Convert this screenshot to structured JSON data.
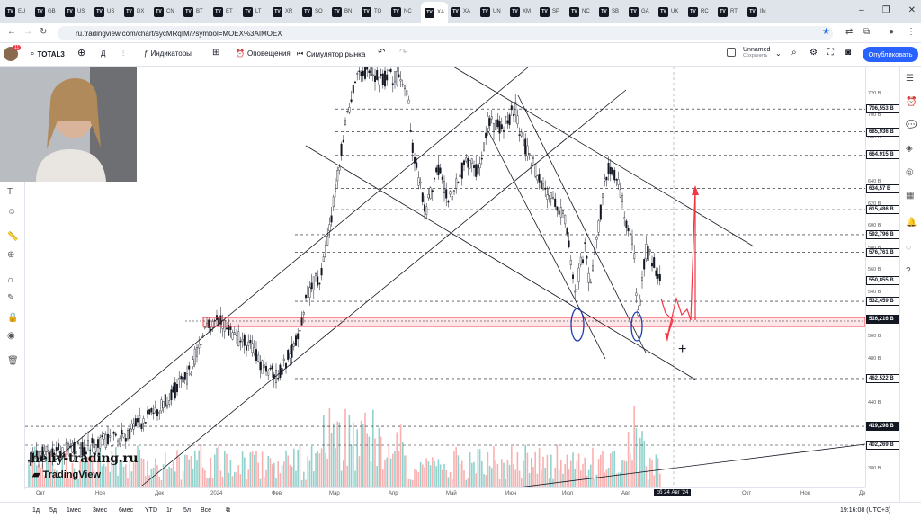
{
  "browser": {
    "tabs": [
      "EU",
      "GB",
      "US",
      "US",
      "DX",
      "CN",
      "BT",
      "ET",
      "LT",
      "XR",
      "SO",
      "BN",
      "TO",
      "NC",
      "XA",
      "XA",
      "UN",
      "XM",
      "SP",
      "NC",
      "SB",
      "GA",
      "UK",
      "RC",
      "RT",
      "IM"
    ],
    "active_tab": "",
    "url": "ru.tradingview.com/chart/sycMRqIM/?symbol=MOEX%3AIMOEX"
  },
  "toolbar": {
    "symbol": "TOTAL3",
    "interval": "Д",
    "indicators": "Индикаторы",
    "alerts": "Оповещения",
    "replay": "Симулятор рынка",
    "layout_name": "Unnamed",
    "layout_status": "Сохранить",
    "publish": "Опубликовать",
    "notif_count": "11"
  },
  "watermark": {
    "site": "heliy-trading.ru",
    "brand": "TradingView"
  },
  "price_axis": {
    "ticks": [
      "720 В",
      "700 В",
      "680 В",
      "640 В",
      "620 В",
      "600 В",
      "580 В",
      "560 В",
      "540 В",
      "500 В",
      "480 В",
      "440 В",
      "380 В"
    ],
    "levels": [
      {
        "label": "706,553 В",
        "value": 706.553,
        "style": "box"
      },
      {
        "label": "685,936 В",
        "value": 685.936,
        "style": "box"
      },
      {
        "label": "664,915 В",
        "value": 664.915,
        "style": "box"
      },
      {
        "label": "634,57 В",
        "value": 634.57,
        "style": "box"
      },
      {
        "label": "615,486 В",
        "value": 615.486,
        "style": "box"
      },
      {
        "label": "592,796 В",
        "value": 592.796,
        "style": "box"
      },
      {
        "label": "576,761 В",
        "value": 576.761,
        "style": "box"
      },
      {
        "label": "550,855 В",
        "value": 550.855,
        "style": "box"
      },
      {
        "label": "532,459 В",
        "value": 532.459,
        "style": "box"
      },
      {
        "label": "516,216 В",
        "value": 516.216,
        "style": "dark"
      },
      {
        "label": "462,522 В",
        "value": 462.522,
        "style": "box"
      },
      {
        "label": "419,298 В",
        "value": 419.298,
        "style": "dark"
      },
      {
        "label": "402,269 В",
        "value": 402.269,
        "style": "box"
      }
    ]
  },
  "time_axis": {
    "labels": [
      "Окт",
      "Ноя",
      "Дек",
      "2024",
      "Фев",
      "Мар",
      "Апр",
      "Май",
      "Июн",
      "Июл",
      "Авг",
      "Окт",
      "Ноя",
      "Де"
    ],
    "cursor_date": "сб 24 Авг '24"
  },
  "bottom": {
    "ranges": [
      "1д",
      "5д",
      "1мес",
      "3мес",
      "6мес",
      "YTD",
      "1г",
      "5л",
      "Все"
    ],
    "clock": "19:16:08 (UTC+3)"
  }
}
